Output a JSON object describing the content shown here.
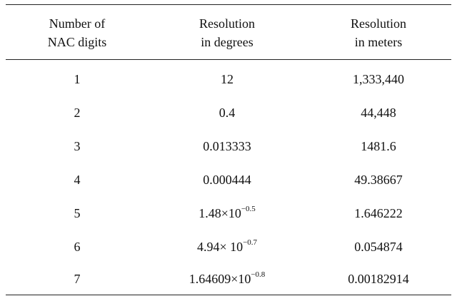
{
  "table": {
    "headers": [
      {
        "line1": "Number of",
        "line2": "NAC digits"
      },
      {
        "line1": "Resolution",
        "line2": "in degrees"
      },
      {
        "line1": "Resolution",
        "line2": "in meters"
      }
    ],
    "rows": [
      {
        "digits": "1",
        "degrees_base": "12",
        "degrees_exp": "",
        "meters": "1,333,440"
      },
      {
        "digits": "2",
        "degrees_base": "0.4",
        "degrees_exp": "",
        "meters": "44,448"
      },
      {
        "digits": "3",
        "degrees_base": "0.013333",
        "degrees_exp": "",
        "meters": "1481.6"
      },
      {
        "digits": "4",
        "degrees_base": "0.000444",
        "degrees_exp": "",
        "meters": "49.38667"
      },
      {
        "digits": "5",
        "degrees_base": "1.48×10",
        "degrees_exp": "−0.5",
        "meters": "1.646222"
      },
      {
        "digits": "6",
        "degrees_base": "4.94× 10",
        "degrees_exp": "−0.7",
        "meters": "0.054874"
      },
      {
        "digits": "7",
        "degrees_base": "1.64609×10",
        "degrees_exp": "−0.8",
        "meters": "0.00182914"
      }
    ]
  }
}
